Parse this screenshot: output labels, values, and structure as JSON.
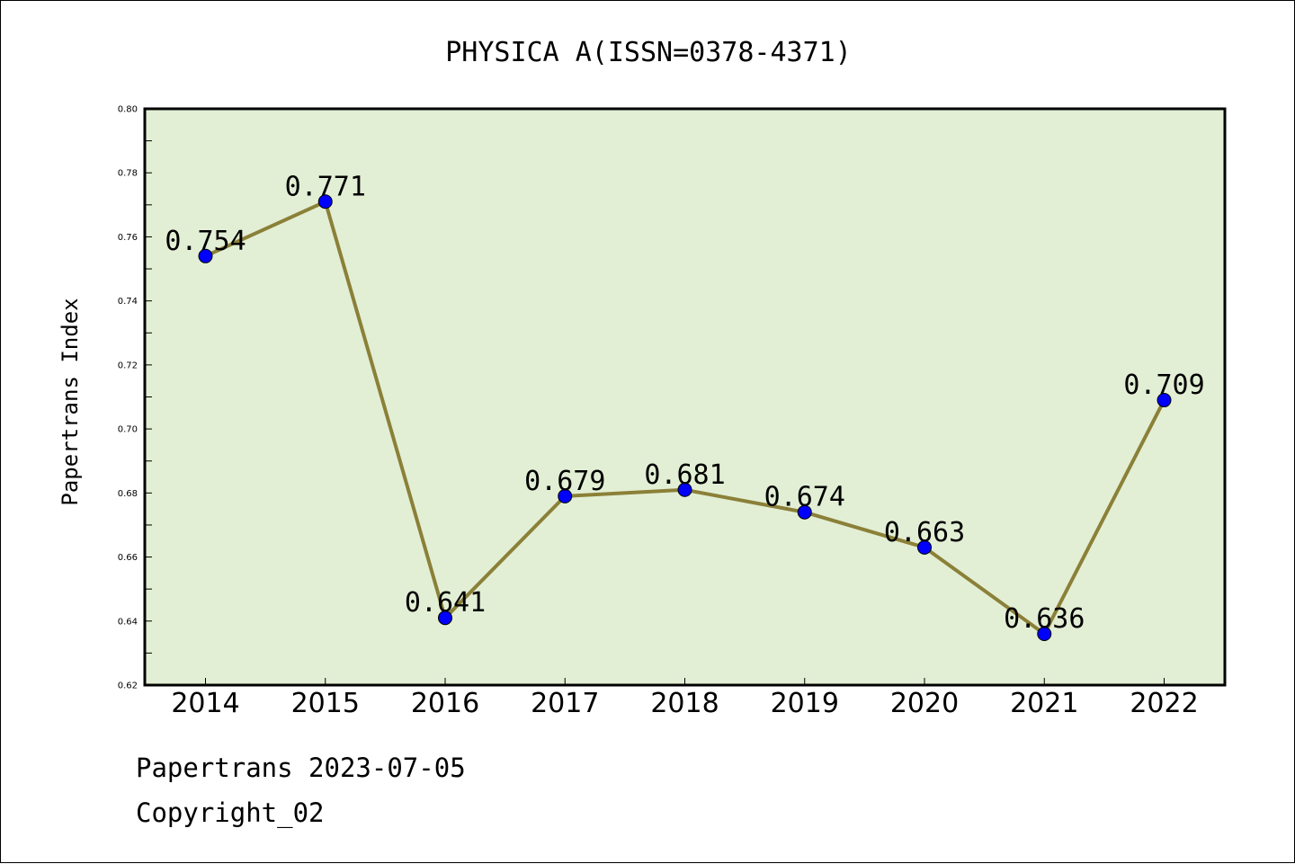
{
  "chart_data": {
    "type": "line",
    "title": "PHYSICA A(ISSN=0378-4371)",
    "ylabel": "Papertrans Index",
    "xlabel": "",
    "categories": [
      "2014",
      "2015",
      "2016",
      "2017",
      "2018",
      "2019",
      "2020",
      "2021",
      "2022"
    ],
    "values": [
      0.754,
      0.771,
      0.641,
      0.679,
      0.681,
      0.674,
      0.663,
      0.636,
      0.709
    ],
    "data_labels": [
      "0.754",
      "0.771",
      "0.641",
      "0.679",
      "0.681",
      "0.674",
      "0.663",
      "0.636",
      "0.709"
    ],
    "ylim": [
      0.62,
      0.8
    ],
    "yticks": [
      "0.62",
      "0.64",
      "0.66",
      "0.68",
      "0.70",
      "0.72",
      "0.74",
      "0.76",
      "0.78",
      "0.80"
    ],
    "grid": false,
    "colors": {
      "line": "#8b8038",
      "marker": "#0000ff",
      "plot_background": "#e2efd5"
    }
  },
  "footer": {
    "line1": "Papertrans 2023-07-05",
    "line2": "Copyright_02"
  }
}
